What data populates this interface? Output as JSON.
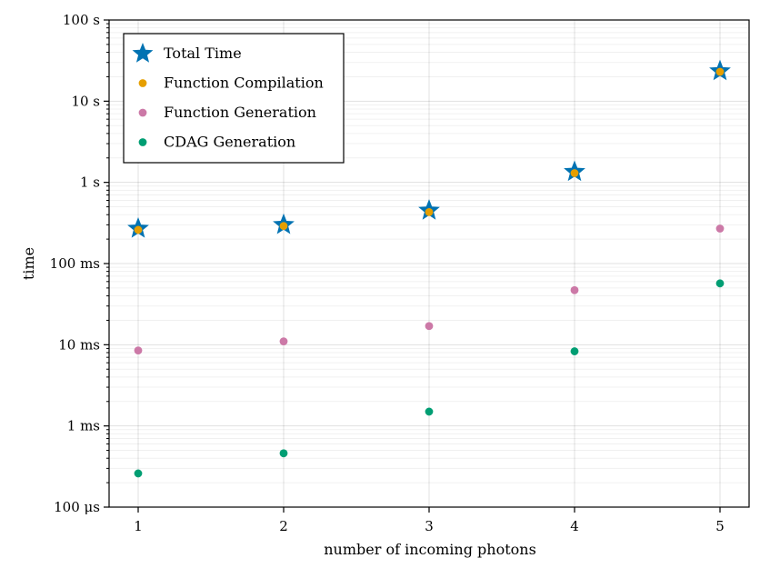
{
  "chart_data": {
    "type": "scatter",
    "title": "",
    "xlabel": "number of incoming photons",
    "ylabel": "time",
    "yscale": "log",
    "xlim": [
      0.8,
      5.2
    ],
    "ylim_seconds": [
      0.0001,
      100
    ],
    "x_ticks": [
      1,
      2,
      3,
      4,
      5
    ],
    "x_tick_labels": [
      "1",
      "2",
      "3",
      "4",
      "5"
    ],
    "y_ticks_seconds": [
      0.0001,
      0.001,
      0.01,
      0.1,
      1,
      10,
      100
    ],
    "y_tick_labels": [
      "100 μs",
      "1 ms",
      "10 ms",
      "100 ms",
      "1 s",
      "10 s",
      "100 s"
    ],
    "grid": true,
    "legend_position": "top-left",
    "series": [
      {
        "name": "Total Time",
        "marker": "star",
        "color": "#0072B2",
        "x": [
          1,
          2,
          3,
          4,
          5
        ],
        "y": [
          0.27,
          0.3,
          0.45,
          1.35,
          23.5
        ]
      },
      {
        "name": "Function Compilation",
        "marker": "circle",
        "color": "#E69F00",
        "x": [
          1,
          2,
          3,
          4,
          5
        ],
        "y": [
          0.26,
          0.29,
          0.43,
          1.3,
          23.0
        ]
      },
      {
        "name": "Function Generation",
        "marker": "circle",
        "color": "#CC79A7",
        "x": [
          1,
          2,
          3,
          4,
          5
        ],
        "y": [
          0.0085,
          0.011,
          0.017,
          0.047,
          0.27
        ]
      },
      {
        "name": "CDAG Generation",
        "marker": "circle",
        "color": "#009E73",
        "x": [
          1,
          2,
          3,
          4,
          5
        ],
        "y": [
          0.00026,
          0.00046,
          0.0015,
          0.0083,
          0.057
        ]
      }
    ]
  }
}
